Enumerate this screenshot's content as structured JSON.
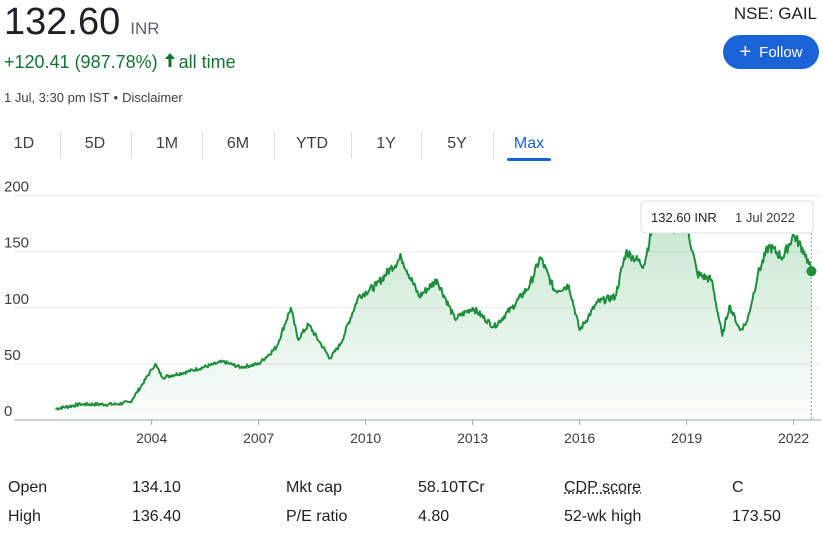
{
  "header": {
    "price": "132.60",
    "currency": "INR",
    "change": "+120.41 (987.78%)",
    "period_label": "all time",
    "timestamp": "1 Jul, 3:30 pm IST",
    "disclaimer": "Disclaimer",
    "ticker": "NSE: GAIL",
    "follow_label": "Follow"
  },
  "tabs": [
    "1D",
    "5D",
    "1M",
    "6M",
    "YTD",
    "1Y",
    "5Y",
    "Max"
  ],
  "active_tab": "Max",
  "colors": {
    "line": "#1e8e3e",
    "accent": "#1a63d6",
    "positive": "#137333"
  },
  "tooltip": {
    "value": "132.60 INR",
    "date": "1 Jul 2022"
  },
  "chart_data": {
    "type": "area",
    "x": [
      2001.3,
      2002.0,
      2003.0,
      2003.4,
      2003.7,
      2004.0,
      2004.1,
      2004.3,
      2005.0,
      2006.0,
      2006.5,
      2007.0,
      2007.5,
      2007.9,
      2008.1,
      2008.4,
      2008.7,
      2009.0,
      2009.3,
      2009.8,
      2010.3,
      2010.7,
      2011.0,
      2011.5,
      2012.0,
      2012.5,
      2013.0,
      2013.6,
      2014.1,
      2014.6,
      2014.9,
      2015.3,
      2015.7,
      2016.0,
      2016.5,
      2017.0,
      2017.3,
      2017.8,
      2018.1,
      2018.6,
      2019.0,
      2019.3,
      2019.7,
      2020.0,
      2020.2,
      2020.5,
      2020.7,
      2021.0,
      2021.3,
      2021.7,
      2022.0,
      2022.3,
      2022.5
    ],
    "y": [
      10,
      14,
      14,
      16,
      30,
      45,
      50,
      38,
      43,
      52,
      47,
      50,
      65,
      100,
      72,
      85,
      70,
      55,
      68,
      110,
      120,
      135,
      145,
      110,
      125,
      90,
      100,
      83,
      100,
      120,
      145,
      115,
      120,
      80,
      105,
      110,
      150,
      138,
      180,
      170,
      175,
      130,
      125,
      75,
      102,
      80,
      88,
      130,
      155,
      145,
      165,
      150,
      132.6
    ],
    "xlim": [
      2000.7,
      2022.6
    ],
    "ylim": [
      0,
      205
    ],
    "y_ticks": [
      0,
      50,
      100,
      150,
      200
    ],
    "x_ticks": [
      2004,
      2007,
      2010,
      2013,
      2016,
      2019,
      2022
    ],
    "grid": true,
    "last_point": {
      "x": 2022.5,
      "y": 132.6
    }
  },
  "stats": [
    {
      "label": "Open",
      "value": "134.10"
    },
    {
      "label": "High",
      "value": "136.40"
    },
    {
      "label": "Mkt cap",
      "value": "58.10TCr"
    },
    {
      "label": "P/E ratio",
      "value": "4.80"
    },
    {
      "label": "CDP score",
      "value": "C"
    },
    {
      "label": "52-wk high",
      "value": "173.50"
    }
  ]
}
